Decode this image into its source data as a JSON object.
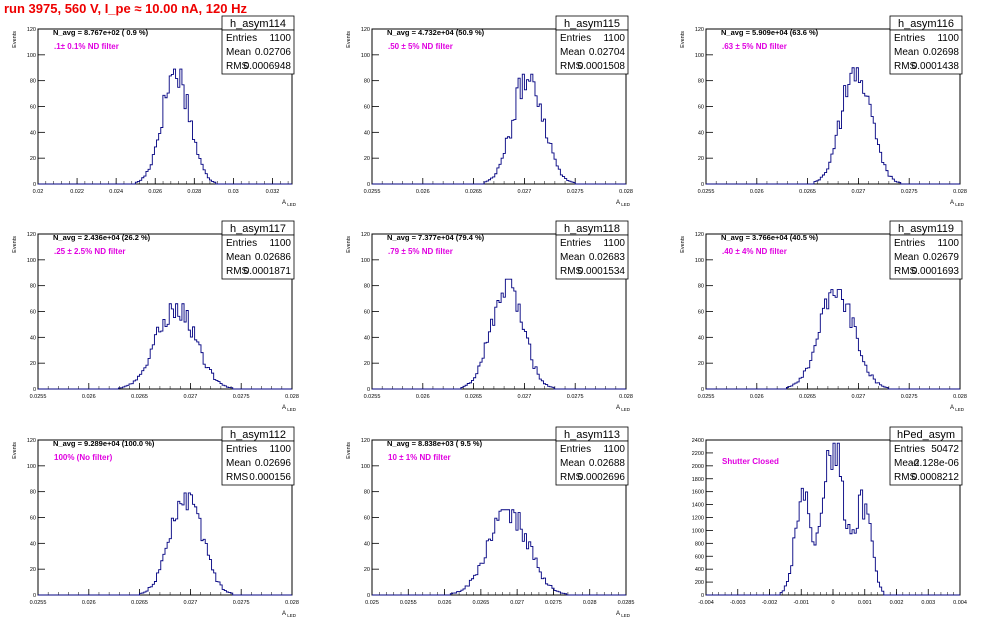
{
  "page": {
    "title": "run 3975,   560 V, I_pe ≈ 10.00 nA, 120 Hz",
    "stat_labels": {
      "entries": "Entries",
      "mean": "Mean",
      "rms": "RMS"
    }
  },
  "chart_data": [
    {
      "type": "histogram",
      "name": "h_asym114",
      "navg": "N_avg = 8.767e+02 ( 0.9 %)",
      "filter": ".1± 0.1% ND filter",
      "stats": {
        "entries": "1100",
        "mean": "0.02706",
        "rms": "0.0006948"
      },
      "xlabel": "A_LED",
      "ylabel": "Events",
      "xlim": [
        0.02,
        0.033
      ],
      "ylim": [
        0,
        120
      ],
      "xticks": [
        0.02,
        0.022,
        0.024,
        0.026,
        0.028,
        0.03,
        0.032
      ],
      "xtick_labels": [
        "0.02",
        "0.022",
        "0.024",
        "0.026",
        "0.028",
        "0.03",
        "0.032"
      ],
      "yticks": [
        0,
        20,
        40,
        60,
        80,
        100,
        120
      ],
      "mean": 0.02706,
      "sigma": 0.0006948,
      "peak": 89
    },
    {
      "type": "histogram",
      "name": "h_asym115",
      "navg": "N_avg = 4.732e+04 (50.9 %)",
      "filter": ".50 ± 5% ND filter",
      "stats": {
        "entries": "1100",
        "mean": "0.02704",
        "rms": "0.0001508"
      },
      "xlabel": "A_LED",
      "ylabel": "Events",
      "xlim": [
        0.0255,
        0.028
      ],
      "ylim": [
        0,
        120
      ],
      "xticks": [
        0.0255,
        0.026,
        0.0265,
        0.027,
        0.0275,
        0.028
      ],
      "xtick_labels": [
        "0.0255",
        "0.026",
        "0.0265",
        "0.027",
        "0.0275",
        "0.028"
      ],
      "yticks": [
        0,
        20,
        40,
        60,
        80,
        100,
        120
      ],
      "mean": 0.02704,
      "sigma": 0.0001508,
      "peak": 85
    },
    {
      "type": "histogram",
      "name": "h_asym116",
      "navg": "N_avg = 5.909e+04 (63.6 %)",
      "filter": ".63 ± 5% ND filter",
      "stats": {
        "entries": "1100",
        "mean": "0.02698",
        "rms": "0.0001438"
      },
      "xlabel": "A_LED",
      "ylabel": "Events",
      "xlim": [
        0.0255,
        0.028
      ],
      "ylim": [
        0,
        120
      ],
      "xticks": [
        0.0255,
        0.026,
        0.0265,
        0.027,
        0.0275,
        0.028
      ],
      "xtick_labels": [
        "0.0255",
        "0.026",
        "0.0265",
        "0.027",
        "0.0275",
        "0.028"
      ],
      "yticks": [
        0,
        20,
        40,
        60,
        80,
        100,
        120
      ],
      "mean": 0.02698,
      "sigma": 0.0001438,
      "peak": 90
    },
    {
      "type": "histogram",
      "name": "h_asym117",
      "navg": "N_avg = 2.436e+04 (26.2 %)",
      "filter": ".25 ± 2.5% ND filter",
      "stats": {
        "entries": "1100",
        "mean": "0.02686",
        "rms": "0.0001871"
      },
      "xlabel": "A_LED",
      "ylabel": "Events",
      "xlim": [
        0.0255,
        0.028
      ],
      "ylim": [
        0,
        120
      ],
      "xticks": [
        0.0255,
        0.026,
        0.0265,
        0.027,
        0.0275,
        0.028
      ],
      "xtick_labels": [
        "0.0255",
        "0.026",
        "0.0265",
        "0.027",
        "0.0275",
        "0.028"
      ],
      "yticks": [
        0,
        20,
        40,
        60,
        80,
        100,
        120
      ],
      "mean": 0.02686,
      "sigma": 0.0001871,
      "peak": 66
    },
    {
      "type": "histogram",
      "name": "h_asym118",
      "navg": "N_avg = 7.377e+04 (79.4 %)",
      "filter": ".79 ± 5% ND filter",
      "stats": {
        "entries": "1100",
        "mean": "0.02683",
        "rms": "0.0001534"
      },
      "xlabel": "A_LED",
      "ylabel": "Events",
      "xlim": [
        0.0255,
        0.028
      ],
      "ylim": [
        0,
        120
      ],
      "xticks": [
        0.0255,
        0.026,
        0.0265,
        0.027,
        0.0275,
        0.028
      ],
      "xtick_labels": [
        "0.0255",
        "0.026",
        "0.0265",
        "0.027",
        "0.0275",
        "0.028"
      ],
      "yticks": [
        0,
        20,
        40,
        60,
        80,
        100,
        120
      ],
      "mean": 0.02683,
      "sigma": 0.0001534,
      "peak": 85
    },
    {
      "type": "histogram",
      "name": "h_asym119",
      "navg": "N_avg = 3.766e+04 (40.5 %)",
      "filter": ".40 ± 4% ND filter",
      "stats": {
        "entries": "1100",
        "mean": "0.02679",
        "rms": "0.0001693"
      },
      "xlabel": "A_LED",
      "ylabel": "Events",
      "xlim": [
        0.0255,
        0.028
      ],
      "ylim": [
        0,
        120
      ],
      "xticks": [
        0.0255,
        0.026,
        0.0265,
        0.027,
        0.0275,
        0.028
      ],
      "xtick_labels": [
        "0.0255",
        "0.026",
        "0.0265",
        "0.027",
        "0.0275",
        "0.028"
      ],
      "yticks": [
        0,
        20,
        40,
        60,
        80,
        100,
        120
      ],
      "mean": 0.02679,
      "sigma": 0.0001693,
      "peak": 77
    },
    {
      "type": "histogram",
      "name": "h_asym112",
      "navg": "N_avg = 9.289e+04 (100.0 %)",
      "filter": "100% (No filter)",
      "stats": {
        "entries": "1100",
        "mean": "0.02696",
        "rms": "0.000156"
      },
      "xlabel": "A_LED",
      "ylabel": "Events",
      "xlim": [
        0.0255,
        0.028
      ],
      "ylim": [
        0,
        120
      ],
      "xticks": [
        0.0255,
        0.026,
        0.0265,
        0.027,
        0.0275,
        0.028
      ],
      "xtick_labels": [
        "0.0255",
        "0.026",
        "0.0265",
        "0.027",
        "0.0275",
        "0.028"
      ],
      "yticks": [
        0,
        20,
        40,
        60,
        80,
        100,
        120
      ],
      "mean": 0.02696,
      "sigma": 0.000156,
      "peak": 79
    },
    {
      "type": "histogram",
      "name": "h_asym113",
      "navg": "N_avg = 8.838e+03 ( 9.5 %)",
      "filter": "10 ± 1% ND filter",
      "stats": {
        "entries": "1100",
        "mean": "0.02688",
        "rms": "0.0002696"
      },
      "xlabel": "A_LED",
      "ylabel": "Events",
      "xlim": [
        0.025,
        0.0285
      ],
      "ylim": [
        0,
        120
      ],
      "xticks": [
        0.025,
        0.0255,
        0.026,
        0.0265,
        0.027,
        0.0275,
        0.028,
        0.0285
      ],
      "xtick_labels": [
        "0.025",
        "0.0255",
        "0.026",
        "0.0265",
        "0.027",
        "0.0275",
        "0.028",
        "0.0285"
      ],
      "yticks": [
        0,
        20,
        40,
        60,
        80,
        100,
        120
      ],
      "mean": 0.02688,
      "sigma": 0.0002696,
      "peak": 66
    },
    {
      "type": "histogram",
      "name": "hPed_asym",
      "navg": "",
      "filter": "Shutter Closed",
      "stats": {
        "entries": "50472",
        "mean": "-2.128e-06",
        "rms": "0.0008212"
      },
      "xlabel": "",
      "ylabel": "",
      "xlim": [
        -0.004,
        0.004
      ],
      "ylim": [
        0,
        2400
      ],
      "xticks": [
        -0.004,
        -0.003,
        -0.002,
        -0.001,
        0,
        0.001,
        0.002,
        0.003,
        0.004
      ],
      "xtick_labels": [
        "-0.004",
        "-0.003",
        "-0.002",
        "-0.001",
        "0",
        "0.001",
        "0.002",
        "0.003",
        "0.004"
      ],
      "yticks": [
        0,
        200,
        400,
        600,
        800,
        1000,
        1200,
        1400,
        1600,
        1800,
        2000,
        2200,
        2400
      ],
      "components": [
        {
          "mean": -0.00095,
          "sigma": 0.00025,
          "peak": 1450
        },
        {
          "mean": 0.0,
          "sigma": 0.00032,
          "peak": 2350
        },
        {
          "mean": 0.00095,
          "sigma": 0.00025,
          "peak": 1400
        }
      ]
    }
  ]
}
